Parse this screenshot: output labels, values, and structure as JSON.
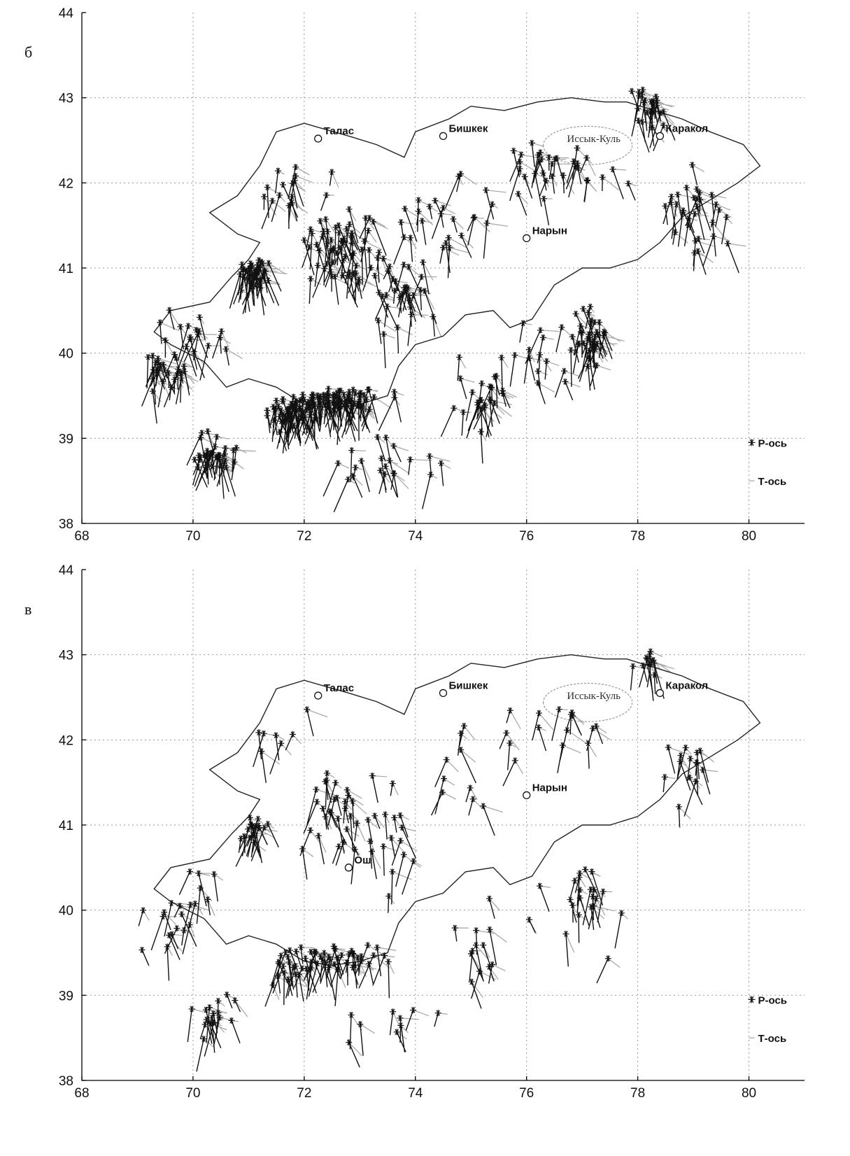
{
  "panels": [
    {
      "id": "b",
      "letter": "б",
      "xticks": [
        "68",
        "70",
        "72",
        "74",
        "76",
        "78",
        "80"
      ],
      "yticks": [
        "38",
        "39",
        "40",
        "41",
        "42",
        "43",
        "44"
      ],
      "cities": [
        "Талас",
        "Бишкек",
        "Каракол",
        "Нарын"
      ],
      "lake": "Иссык-Куль",
      "legend_p": "Р-ось",
      "legend_t": "Т-ось"
    },
    {
      "id": "v",
      "letter": "в",
      "xticks": [
        "68",
        "70",
        "72",
        "74",
        "76",
        "78",
        "80"
      ],
      "yticks": [
        "38",
        "39",
        "40",
        "41",
        "42",
        "43",
        "44"
      ],
      "cities": [
        "Талас",
        "Бишкек",
        "Каракол",
        "Нарын",
        "Ош"
      ],
      "lake": "Иссык-Куль",
      "legend_p": "Р-ось",
      "legend_t": "Т-ось"
    }
  ],
  "map_extent": {
    "lon": [
      68,
      81
    ],
    "lat": [
      38,
      44
    ]
  },
  "city_coords": {
    "Талас": [
      72.25,
      42.52
    ],
    "Бишкек": [
      74.5,
      42.55
    ],
    "Каракол": [
      78.4,
      42.55
    ],
    "Нарын": [
      76.0,
      41.35
    ],
    "Ош": [
      72.8,
      40.5
    ]
  },
  "lake_coords": [
    76.6,
    42.52
  ],
  "border_coords": [
    [
      70.3,
      41.65
    ],
    [
      70.8,
      41.85
    ],
    [
      71.2,
      42.2
    ],
    [
      71.5,
      42.6
    ],
    [
      72.0,
      42.7
    ],
    [
      72.8,
      42.55
    ],
    [
      73.3,
      42.45
    ],
    [
      73.8,
      42.3
    ],
    [
      74.0,
      42.6
    ],
    [
      74.6,
      42.75
    ],
    [
      75.0,
      42.9
    ],
    [
      75.6,
      42.85
    ],
    [
      76.2,
      42.95
    ],
    [
      76.8,
      43.0
    ],
    [
      77.4,
      42.95
    ],
    [
      77.8,
      42.95
    ],
    [
      78.3,
      42.85
    ],
    [
      78.8,
      42.75
    ],
    [
      79.3,
      42.6
    ],
    [
      79.9,
      42.45
    ],
    [
      80.2,
      42.2
    ],
    [
      79.8,
      42.0
    ],
    [
      79.3,
      41.8
    ],
    [
      78.8,
      41.6
    ],
    [
      78.4,
      41.3
    ],
    [
      78.0,
      41.1
    ],
    [
      77.5,
      41.0
    ],
    [
      77.0,
      41.0
    ],
    [
      76.5,
      40.8
    ],
    [
      76.1,
      40.4
    ],
    [
      75.7,
      40.3
    ],
    [
      75.4,
      40.5
    ],
    [
      74.9,
      40.45
    ],
    [
      74.5,
      40.2
    ],
    [
      74.0,
      40.1
    ],
    [
      73.7,
      39.85
    ],
    [
      73.5,
      39.5
    ],
    [
      73.0,
      39.4
    ],
    [
      72.5,
      39.35
    ],
    [
      72.0,
      39.4
    ],
    [
      71.5,
      39.6
    ],
    [
      71.0,
      39.7
    ],
    [
      70.6,
      39.6
    ],
    [
      70.2,
      39.9
    ],
    [
      69.6,
      40.1
    ],
    [
      69.3,
      40.25
    ],
    [
      69.6,
      40.5
    ],
    [
      70.3,
      40.6
    ],
    [
      70.7,
      40.9
    ],
    [
      71.0,
      41.1
    ],
    [
      71.2,
      41.3
    ],
    [
      70.8,
      41.4
    ],
    [
      70.3,
      41.65
    ]
  ]
}
